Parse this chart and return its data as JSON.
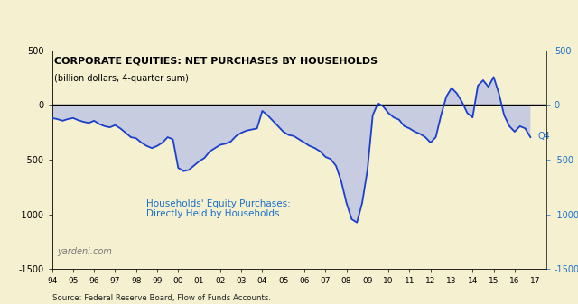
{
  "title": "CORPORATE EQUITIES: NET PURCHASES BY HOUSEHOLDS",
  "subtitle": "(billion dollars, 4-quarter sum)",
  "source": "Source: Federal Reserve Board, Flow of Funds Accounts.",
  "watermark": "yardeni.com",
  "annotation_line1": "Households' Equity Purchases:",
  "annotation_line2": "Directly Held by Households",
  "q4_label": "Q4",
  "bg_color": "#f5f0d0",
  "line_color": "#1a3fcc",
  "fill_color": "#c8cce0",
  "annotation_color": "#1a6fcc",
  "right_tick_color": "#1a6fcc",
  "xlim": [
    1994.0,
    2017.5
  ],
  "ylim": [
    -1500,
    500
  ],
  "ytick_vals": [
    500,
    0,
    -500,
    -1000,
    -1500
  ],
  "ytick_labels_left": [
    "500",
    "0",
    "-500",
    "-1000",
    "-1500"
  ],
  "ytick_labels_right": [
    "500",
    "0",
    "-500",
    "-1000",
    "-1500"
  ],
  "xtick_positions": [
    1994,
    1995,
    1996,
    1997,
    1998,
    1999,
    2000,
    2001,
    2002,
    2003,
    2004,
    2005,
    2006,
    2007,
    2008,
    2009,
    2010,
    2011,
    2012,
    2013,
    2014,
    2015,
    2016,
    2017
  ],
  "xtick_labels": [
    "94",
    "95",
    "96",
    "97",
    "98",
    "99",
    "00",
    "01",
    "02",
    "03",
    "04",
    "05",
    "06",
    "07",
    "08",
    "09",
    "10",
    "11",
    "12",
    "13",
    "14",
    "15",
    "16",
    "17"
  ],
  "x": [
    1994.0,
    1994.25,
    1994.5,
    1994.75,
    1995.0,
    1995.25,
    1995.5,
    1995.75,
    1996.0,
    1996.25,
    1996.5,
    1996.75,
    1997.0,
    1997.25,
    1997.5,
    1997.75,
    1998.0,
    1998.25,
    1998.5,
    1998.75,
    1999.0,
    1999.25,
    1999.5,
    1999.75,
    2000.0,
    2000.25,
    2000.5,
    2000.75,
    2001.0,
    2001.25,
    2001.5,
    2001.75,
    2002.0,
    2002.25,
    2002.5,
    2002.75,
    2003.0,
    2003.25,
    2003.5,
    2003.75,
    2004.0,
    2004.25,
    2004.5,
    2004.75,
    2005.0,
    2005.25,
    2005.5,
    2005.75,
    2006.0,
    2006.25,
    2006.5,
    2006.75,
    2007.0,
    2007.25,
    2007.5,
    2007.75,
    2008.0,
    2008.25,
    2008.5,
    2008.75,
    2009.0,
    2009.25,
    2009.5,
    2009.75,
    2010.0,
    2010.25,
    2010.5,
    2010.75,
    2011.0,
    2011.25,
    2011.5,
    2011.75,
    2012.0,
    2012.25,
    2012.5,
    2012.75,
    2013.0,
    2013.25,
    2013.5,
    2013.75,
    2014.0,
    2014.25,
    2014.5,
    2014.75,
    2015.0,
    2015.25,
    2015.5,
    2015.75,
    2016.0,
    2016.25,
    2016.5,
    2016.75
  ],
  "y": [
    -120,
    -130,
    -145,
    -130,
    -120,
    -140,
    -155,
    -165,
    -145,
    -175,
    -195,
    -205,
    -185,
    -215,
    -255,
    -295,
    -305,
    -345,
    -375,
    -395,
    -375,
    -345,
    -295,
    -315,
    -575,
    -605,
    -595,
    -555,
    -515,
    -485,
    -425,
    -395,
    -365,
    -355,
    -335,
    -285,
    -255,
    -235,
    -225,
    -215,
    -55,
    -95,
    -145,
    -195,
    -245,
    -275,
    -285,
    -315,
    -345,
    -375,
    -395,
    -425,
    -475,
    -495,
    -555,
    -695,
    -895,
    -1045,
    -1075,
    -895,
    -595,
    -95,
    15,
    -15,
    -75,
    -115,
    -135,
    -195,
    -215,
    -245,
    -265,
    -295,
    -345,
    -295,
    -95,
    75,
    155,
    105,
    25,
    -75,
    -115,
    175,
    225,
    165,
    255,
    105,
    -95,
    -195,
    -245,
    -195,
    -215,
    -295
  ]
}
